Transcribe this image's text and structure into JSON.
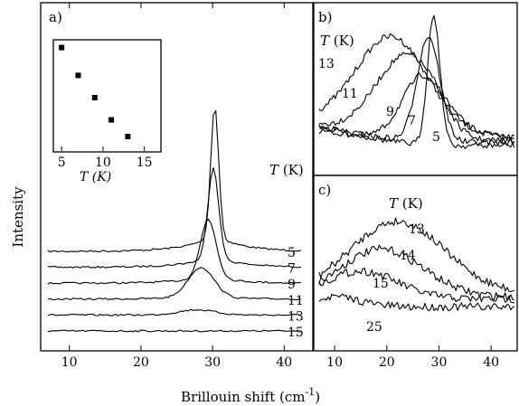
{
  "figure": {
    "xlabel": "Brillouin shift (cm",
    "xlabel_sup": "-1",
    "xlabel_end": ")",
    "ylabel": "Intensity"
  },
  "chart_data": [
    {
      "panel": "a)",
      "type": "line",
      "xlim": [
        6,
        44
      ],
      "xticks": [
        10,
        20,
        30,
        40
      ],
      "temp_header_T": "T",
      "temp_header_unit": "(K)",
      "series": [
        {
          "name": "5",
          "offset": 5.0,
          "peak_x": 30.3,
          "peak_h": 8.2,
          "width": 0.55,
          "noise": 0.22
        },
        {
          "name": "7",
          "offset": 4.0,
          "peak_x": 30.1,
          "peak_h": 5.6,
          "width": 0.75,
          "noise": 0.22
        },
        {
          "name": "9",
          "offset": 3.0,
          "peak_x": 29.4,
          "peak_h": 3.6,
          "width": 1.1,
          "noise": 0.22
        },
        {
          "name": "11",
          "offset": 2.0,
          "peak_x": 28.4,
          "peak_h": 1.8,
          "width": 1.8,
          "noise": 0.22
        },
        {
          "name": "13",
          "offset": 1.0,
          "peak_x": 27.8,
          "peak_h": 0.3,
          "width": 2.5,
          "noise": 0.22
        },
        {
          "name": "15",
          "offset": 0.0,
          "peak_x": 27.8,
          "peak_h": 0.0,
          "width": 2.5,
          "noise": 0.22
        }
      ]
    },
    {
      "panel": "inset",
      "type": "scatter",
      "xlim": [
        4,
        17
      ],
      "xticks": [
        5,
        10,
        15
      ],
      "xlabel_T": "T",
      "xlabel_unit": "(K)",
      "points": [
        {
          "x": 5,
          "y": 0.93
        },
        {
          "x": 7,
          "y": 0.68
        },
        {
          "x": 9,
          "y": 0.48
        },
        {
          "x": 11,
          "y": 0.28
        },
        {
          "x": 13,
          "y": 0.13
        }
      ]
    },
    {
      "panel": "b)",
      "type": "line",
      "xlim": [
        6,
        45
      ],
      "temp_header_T": "T",
      "temp_header_unit": "(K)",
      "series": [
        {
          "name": "13",
          "amp": 6.0,
          "x0": 21,
          "w": 7,
          "base": 1.0
        },
        {
          "name": "11",
          "amp": 5.0,
          "x0": 24,
          "w": 6,
          "base": 1.0
        },
        {
          "name": "9",
          "amp": 4.0,
          "x0": 27,
          "w": 4,
          "base": 0.8
        },
        {
          "name": "7",
          "amp": 6.5,
          "x0": 28,
          "w": 2.2,
          "base": 0.7
        },
        {
          "name": "5",
          "amp": 8.0,
          "x0": 29,
          "w": 1.2,
          "base": 0.5
        }
      ]
    },
    {
      "panel": "c)",
      "type": "line",
      "xlim": [
        6,
        45
      ],
      "xticks": [
        10,
        20,
        30,
        40
      ],
      "temp_header_T": "T",
      "temp_header_unit": "(K)",
      "series": [
        {
          "name": "13",
          "amp": 3.6,
          "x0": 22,
          "w": 9,
          "base": 1.0
        },
        {
          "name": "14",
          "amp": 2.4,
          "x0": 19,
          "w": 8,
          "base": 0.8
        },
        {
          "name": "15",
          "amp": 1.4,
          "x0": 15,
          "w": 7,
          "base": 0.7
        },
        {
          "name": "25",
          "amp": 0.5,
          "x0": 10,
          "w": 5,
          "base": 0.3
        }
      ]
    }
  ]
}
